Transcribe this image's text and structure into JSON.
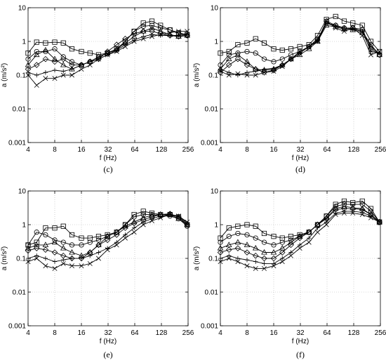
{
  "chart_data": [
    {
      "type": "line",
      "panel_label": "(c)",
      "xlabel": "f (Hz)",
      "ylabel": "a (m/s²)",
      "x_scale": "log2",
      "y_scale": "log10",
      "xlim": [
        4,
        256
      ],
      "ylim": [
        0.001,
        10
      ],
      "x_ticks": [
        "4",
        "8",
        "16",
        "32",
        "64",
        "128",
        "256"
      ],
      "y_ticks": [
        "0.001",
        "0.01",
        "0.1",
        "1",
        "10"
      ],
      "x": [
        4,
        5,
        6.3,
        8,
        10,
        12.5,
        16,
        20,
        25,
        31.5,
        40,
        50,
        63,
        80,
        100,
        125,
        160,
        200,
        250
      ],
      "series": [
        {
          "marker": "square",
          "values": [
            0.45,
            0.95,
            0.9,
            0.95,
            0.9,
            0.6,
            0.5,
            0.45,
            0.4,
            0.45,
            0.6,
            1.0,
            2.0,
            3.5,
            4.0,
            3.0,
            2.2,
            1.8,
            1.6
          ]
        },
        {
          "marker": "circle",
          "values": [
            0.3,
            0.5,
            0.5,
            0.6,
            0.35,
            0.25,
            0.2,
            0.25,
            0.35,
            0.45,
            0.55,
            1.0,
            2.0,
            2.8,
            3.0,
            2.5,
            2.2,
            1.7,
            1.5
          ]
        },
        {
          "marker": "triangle",
          "values": [
            0.2,
            0.4,
            0.55,
            0.3,
            0.2,
            0.15,
            0.2,
            0.25,
            0.35,
            0.45,
            0.6,
            0.9,
            1.4,
            2.0,
            2.5,
            2.0,
            1.6,
            1.4,
            1.5
          ]
        },
        {
          "marker": "diamond",
          "values": [
            0.15,
            0.2,
            0.3,
            0.25,
            0.3,
            0.2,
            0.2,
            0.25,
            0.3,
            0.5,
            0.8,
            1.2,
            1.7,
            2.0,
            2.0,
            1.7,
            1.5,
            1.4,
            1.5
          ]
        },
        {
          "marker": "plus",
          "values": [
            0.12,
            0.1,
            0.12,
            0.14,
            0.13,
            0.15,
            0.2,
            0.25,
            0.3,
            0.4,
            0.55,
            0.8,
            1.1,
            1.4,
            1.6,
            1.5,
            1.5,
            1.5,
            1.6
          ]
        },
        {
          "marker": "x",
          "values": [
            0.1,
            0.05,
            0.08,
            0.08,
            0.1,
            0.1,
            0.15,
            0.2,
            0.3,
            0.4,
            0.5,
            0.7,
            1.0,
            1.2,
            1.4,
            1.6,
            1.8,
            2.0,
            2.0
          ]
        }
      ]
    },
    {
      "type": "line",
      "panel_label": "(d)",
      "xlabel": "f (Hz)",
      "ylabel": "a (m/s²)",
      "x_scale": "log2",
      "y_scale": "log10",
      "xlim": [
        4,
        256
      ],
      "ylim": [
        0.001,
        10
      ],
      "x_ticks": [
        "4",
        "8",
        "16",
        "32",
        "64",
        "128",
        "256"
      ],
      "y_ticks": [
        "0.001",
        "0.01",
        "0.1",
        "1",
        "10"
      ],
      "x": [
        4,
        5,
        6.3,
        8,
        10,
        12.5,
        16,
        20,
        25,
        31.5,
        40,
        50,
        63,
        80,
        100,
        125,
        160,
        200,
        250
      ],
      "series": [
        {
          "marker": "square",
          "values": [
            0.45,
            0.5,
            0.8,
            0.9,
            1.2,
            0.9,
            0.6,
            0.55,
            0.6,
            0.7,
            0.8,
            1.5,
            4.5,
            5.5,
            4.0,
            3.5,
            3.0,
            1.0,
            0.5
          ]
        },
        {
          "marker": "circle",
          "values": [
            0.2,
            0.4,
            0.45,
            0.5,
            0.45,
            0.3,
            0.25,
            0.3,
            0.4,
            0.5,
            0.7,
            1.2,
            3.5,
            3.0,
            2.5,
            2.5,
            2.0,
            0.8,
            0.4
          ]
        },
        {
          "marker": "triangle",
          "values": [
            0.15,
            0.3,
            0.4,
            0.25,
            0.15,
            0.14,
            0.15,
            0.2,
            0.3,
            0.4,
            0.6,
            1.0,
            3.0,
            2.7,
            2.3,
            2.2,
            1.8,
            0.7,
            0.4
          ]
        },
        {
          "marker": "diamond",
          "values": [
            0.12,
            0.2,
            0.3,
            0.2,
            0.15,
            0.12,
            0.14,
            0.2,
            0.3,
            0.45,
            0.7,
            1.1,
            4.0,
            3.0,
            2.5,
            2.5,
            2.3,
            0.6,
            0.4
          ]
        },
        {
          "marker": "plus",
          "values": [
            0.15,
            0.12,
            0.1,
            0.12,
            0.13,
            0.15,
            0.16,
            0.2,
            0.3,
            0.45,
            0.7,
            1.0,
            3.5,
            2.8,
            2.5,
            2.3,
            2.0,
            0.5,
            0.45
          ]
        },
        {
          "marker": "x",
          "values": [
            0.13,
            0.1,
            0.11,
            0.1,
            0.1,
            0.12,
            0.13,
            0.18,
            0.3,
            0.5,
            0.7,
            1.0,
            4.0,
            2.5,
            2.0,
            2.5,
            1.5,
            0.4,
            0.5
          ]
        }
      ]
    },
    {
      "type": "line",
      "panel_label": "(e)",
      "xlabel": "f (Hz)",
      "ylabel": "a (m/s²)",
      "x_scale": "log2",
      "y_scale": "log10",
      "xlim": [
        4,
        256
      ],
      "ylim": [
        0.001,
        10
      ],
      "x_ticks": [
        "4",
        "8",
        "16",
        "32",
        "64",
        "128",
        "256"
      ],
      "y_ticks": [
        "0.001",
        "0.01",
        "0.1",
        "1",
        "10"
      ],
      "x": [
        4,
        5,
        6.3,
        8,
        10,
        12.5,
        16,
        20,
        25,
        31.5,
        40,
        50,
        63,
        80,
        100,
        125,
        160,
        200,
        250
      ],
      "series": [
        {
          "marker": "square",
          "values": [
            0.25,
            0.3,
            0.8,
            0.8,
            0.9,
            0.5,
            0.4,
            0.4,
            0.45,
            0.5,
            0.6,
            1.0,
            2.0,
            2.5,
            2.2,
            2.0,
            2.0,
            1.7,
            1.0
          ]
        },
        {
          "marker": "circle",
          "values": [
            0.25,
            0.6,
            0.5,
            0.35,
            0.3,
            0.25,
            0.25,
            0.3,
            0.35,
            0.45,
            0.6,
            1.0,
            1.7,
            2.0,
            2.0,
            1.8,
            1.8,
            1.5,
            0.9
          ]
        },
        {
          "marker": "triangle",
          "values": [
            0.2,
            0.25,
            0.25,
            0.3,
            0.2,
            0.15,
            0.12,
            0.15,
            0.25,
            0.45,
            0.6,
            0.9,
            1.2,
            1.6,
            1.9,
            2.0,
            2.0,
            1.5,
            1.0
          ]
        },
        {
          "marker": "diamond",
          "values": [
            0.17,
            0.2,
            0.18,
            0.15,
            0.12,
            0.1,
            0.1,
            0.15,
            0.25,
            0.35,
            0.5,
            0.8,
            1.1,
            1.4,
            1.7,
            2.0,
            2.1,
            1.7,
            1.0
          ]
        },
        {
          "marker": "plus",
          "values": [
            0.1,
            0.12,
            0.1,
            0.08,
            0.09,
            0.1,
            0.1,
            0.12,
            0.15,
            0.2,
            0.3,
            0.5,
            0.8,
            1.2,
            1.5,
            1.8,
            2.0,
            1.8,
            1.1
          ]
        },
        {
          "marker": "x",
          "values": [
            0.08,
            0.1,
            0.06,
            0.05,
            0.07,
            0.06,
            0.06,
            0.07,
            0.1,
            0.18,
            0.25,
            0.4,
            0.6,
            1.0,
            1.3,
            1.6,
            2.0,
            1.8,
            1.2
          ]
        }
      ]
    },
    {
      "type": "line",
      "panel_label": "(f)",
      "xlabel": "f (Hz)",
      "ylabel": "a (m/s²)",
      "x_scale": "log2",
      "y_scale": "log10",
      "xlim": [
        4,
        256
      ],
      "ylim": [
        0.001,
        10
      ],
      "x_ticks": [
        "4",
        "8",
        "16",
        "32",
        "64",
        "128",
        "256"
      ],
      "y_ticks": [
        "0.001",
        "0.01",
        "0.1",
        "1",
        "10"
      ],
      "x": [
        4,
        5,
        6.3,
        8,
        10,
        12.5,
        16,
        20,
        25,
        31.5,
        40,
        50,
        63,
        80,
        100,
        125,
        160,
        200,
        250
      ],
      "series": [
        {
          "marker": "square",
          "values": [
            0.4,
            0.8,
            0.9,
            1.0,
            0.9,
            0.55,
            0.45,
            0.4,
            0.45,
            0.5,
            0.6,
            1.0,
            1.8,
            4.0,
            5.0,
            4.5,
            5.0,
            3.0,
            1.2
          ]
        },
        {
          "marker": "circle",
          "values": [
            0.3,
            0.45,
            0.55,
            0.5,
            0.4,
            0.3,
            0.25,
            0.3,
            0.35,
            0.45,
            0.6,
            1.0,
            1.8,
            3.5,
            4.0,
            4.0,
            4.0,
            2.5,
            1.2
          ]
        },
        {
          "marker": "triangle",
          "values": [
            0.2,
            0.25,
            0.3,
            0.25,
            0.2,
            0.15,
            0.15,
            0.2,
            0.3,
            0.45,
            0.6,
            1.0,
            1.6,
            3.0,
            3.5,
            3.2,
            3.0,
            2.0,
            1.2
          ]
        },
        {
          "marker": "diamond",
          "values": [
            0.15,
            0.18,
            0.2,
            0.15,
            0.12,
            0.1,
            0.1,
            0.15,
            0.25,
            0.4,
            0.6,
            1.0,
            1.5,
            2.8,
            3.0,
            3.0,
            2.8,
            2.0,
            1.2
          ]
        },
        {
          "marker": "plus",
          "values": [
            0.1,
            0.12,
            0.1,
            0.09,
            0.08,
            0.07,
            0.07,
            0.1,
            0.15,
            0.25,
            0.4,
            0.8,
            1.2,
            2.2,
            2.5,
            2.5,
            2.3,
            1.8,
            1.2
          ]
        },
        {
          "marker": "x",
          "values": [
            0.08,
            0.1,
            0.08,
            0.06,
            0.05,
            0.05,
            0.06,
            0.08,
            0.12,
            0.2,
            0.3,
            0.6,
            1.0,
            2.0,
            2.2,
            2.2,
            2.0,
            1.6,
            1.2
          ]
        }
      ]
    }
  ]
}
